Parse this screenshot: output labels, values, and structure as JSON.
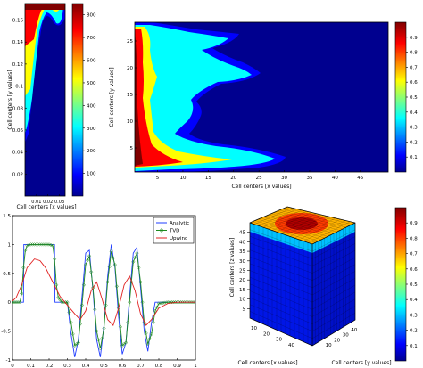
{
  "chart_data": [
    {
      "id": "p1",
      "type": "heatmap",
      "ylabel": "Cell centers [y values]",
      "xlabel": "Cell centers [x values]",
      "x_ticks": [
        "0.01",
        "0.02",
        "0.03"
      ],
      "y_ticks": [
        "0.02",
        "0.04",
        "0.06",
        "0.08",
        "0.1",
        "0.12",
        "0.14",
        "0.16"
      ],
      "xlim": [
        0,
        0.035
      ],
      "ylim": [
        0,
        0.175
      ],
      "colorbar": {
        "ticks": [
          "100",
          "200",
          "300",
          "400",
          "500",
          "600",
          "700",
          "800"
        ],
        "range": [
          0,
          850
        ]
      },
      "grid": false
    },
    {
      "id": "p2",
      "type": "heatmap",
      "ylabel": "Cell centers [y values]",
      "xlabel": "Cell centers [x values]",
      "x_ticks": [
        "5",
        "10",
        "15",
        "20",
        "25",
        "30",
        "35",
        "40",
        "45"
      ],
      "y_ticks": [
        "5",
        "10",
        "15",
        "20",
        "25"
      ],
      "xlim": [
        0.5,
        50.5
      ],
      "ylim": [
        0.5,
        28.5
      ],
      "colorbar": {
        "ticks": [
          "0.1",
          "0.2",
          "0.3",
          "0.4",
          "0.5",
          "0.6",
          "0.7",
          "0.8",
          "0.9"
        ],
        "range": [
          0,
          1
        ]
      },
      "grid": false
    },
    {
      "id": "p3",
      "type": "line",
      "x_ticks": [
        "0",
        "0.1",
        "0.2",
        "0.3",
        "0.4",
        "0.5",
        "0.6",
        "0.7",
        "0.8",
        "0.9",
        "1"
      ],
      "y_ticks": [
        "-1",
        "-0.5",
        "0",
        "0.5",
        "1",
        "1.5"
      ],
      "xlim": [
        0,
        1
      ],
      "ylim": [
        -1,
        1.5
      ],
      "legend": "top-right",
      "grid": false,
      "series": [
        {
          "name": "Analytic",
          "color": "#1f3cff",
          "x": [
            0,
            0.06,
            0.062,
            0.23,
            0.232,
            0.3,
            0.32,
            0.34,
            0.36,
            0.38,
            0.4,
            0.42,
            0.44,
            0.46,
            0.48,
            0.5,
            0.52,
            0.54,
            0.56,
            0.58,
            0.6,
            0.62,
            0.64,
            0.66,
            0.68,
            0.7,
            0.72,
            0.74,
            0.76,
            0.78,
            0.8,
            1
          ],
          "y": [
            0,
            0,
            1,
            1,
            0,
            0,
            -0.55,
            -0.95,
            -0.65,
            0.1,
            0.85,
            0.9,
            0.2,
            -0.65,
            -0.95,
            -0.4,
            0.45,
            1,
            0.6,
            -0.25,
            -0.9,
            -0.7,
            0.1,
            0.85,
            0.95,
            0.25,
            -0.5,
            -0.85,
            -0.35,
            0,
            0,
            0
          ]
        },
        {
          "name": "TVD",
          "color": "#1f8a1f",
          "x": [
            0,
            0.04,
            0.05,
            0.06,
            0.07,
            0.08,
            0.1,
            0.15,
            0.2,
            0.22,
            0.23,
            0.24,
            0.25,
            0.27,
            0.3,
            0.32,
            0.34,
            0.36,
            0.38,
            0.4,
            0.42,
            0.44,
            0.46,
            0.48,
            0.5,
            0.52,
            0.54,
            0.56,
            0.58,
            0.6,
            0.62,
            0.64,
            0.66,
            0.68,
            0.7,
            0.72,
            0.74,
            0.76,
            0.78,
            0.8,
            0.85,
            1
          ],
          "y": [
            0,
            0,
            0.15,
            0.6,
            0.9,
            0.98,
            1,
            1,
            1,
            0.98,
            0.75,
            0.3,
            0.08,
            0,
            0,
            -0.35,
            -0.75,
            -0.7,
            -0.05,
            0.65,
            0.8,
            0.25,
            -0.5,
            -0.8,
            -0.45,
            0.35,
            0.88,
            0.65,
            -0.1,
            -0.75,
            -0.7,
            0,
            0.7,
            0.85,
            0.35,
            -0.35,
            -0.72,
            -0.55,
            -0.15,
            -0.02,
            0,
            0
          ]
        },
        {
          "name": "Upwind",
          "color": "#e02020",
          "x": [
            0,
            0.02,
            0.05,
            0.08,
            0.12,
            0.15,
            0.18,
            0.22,
            0.26,
            0.3,
            0.34,
            0.37,
            0.4,
            0.43,
            0.46,
            0.49,
            0.52,
            0.55,
            0.58,
            0.61,
            0.64,
            0.67,
            0.7,
            0.73,
            0.76,
            0.8,
            0.85,
            0.9,
            1
          ],
          "y": [
            0.02,
            0.08,
            0.3,
            0.6,
            0.75,
            0.72,
            0.6,
            0.35,
            0.1,
            -0.05,
            -0.2,
            -0.3,
            -0.15,
            0.2,
            0.35,
            0.05,
            -0.3,
            -0.4,
            -0.1,
            0.3,
            0.45,
            0.2,
            -0.2,
            -0.4,
            -0.3,
            -0.1,
            -0.02,
            0,
            0
          ]
        }
      ]
    },
    {
      "id": "p4",
      "type": "heatmap",
      "projection": "3d",
      "zlabel": "Cell centers [z values]",
      "xlabel": "Cell centers [x values]",
      "ylabel": "Cell centers [y values]",
      "z_ticks": [
        "5",
        "10",
        "15",
        "20",
        "25",
        "30",
        "35",
        "40",
        "45"
      ],
      "x_ticks": [
        "10",
        "20",
        "30",
        "40"
      ],
      "y_ticks": [
        "10",
        "20",
        "30",
        "40"
      ],
      "colorbar": {
        "ticks": [
          "0.1",
          "0.2",
          "0.3",
          "0.4",
          "0.5",
          "0.6",
          "0.7",
          "0.8",
          "0.9"
        ],
        "range": [
          0,
          1
        ]
      }
    }
  ]
}
